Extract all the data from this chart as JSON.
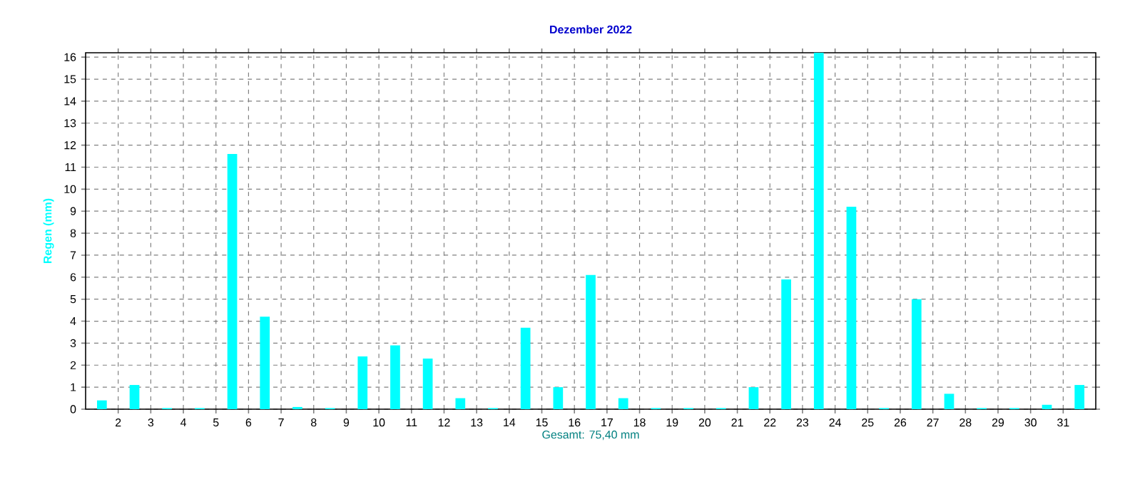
{
  "chart_data": {
    "type": "bar",
    "title": "Dezember 2022",
    "ylabel": "Regen  (mm)",
    "xlabel": "Gesamt: 75,40 mm",
    "x": [
      1.5,
      2.5,
      3.5,
      4.5,
      5.5,
      6.5,
      7.5,
      8.5,
      9.5,
      10.5,
      11.5,
      12.5,
      13.5,
      14.5,
      15.5,
      16.5,
      17.5,
      18.5,
      19.5,
      20.5,
      21.5,
      22.5,
      23.5,
      24.5,
      25.5,
      26.5,
      27.5,
      28.5,
      29.5,
      30.5,
      31.5
    ],
    "values": [
      0.4,
      1.1,
      0.05,
      0.05,
      11.6,
      4.2,
      0.1,
      0.05,
      2.4,
      2.9,
      2.3,
      0.5,
      0.05,
      3.7,
      1.0,
      6.1,
      0.5,
      0.05,
      0.05,
      0.05,
      1.0,
      5.9,
      16.2,
      9.2,
      0.05,
      5.0,
      0.7,
      0.05,
      0.05,
      0.2,
      1.1
    ],
    "color": "#00ffff",
    "xlim": [
      1,
      32
    ],
    "xticks": [
      2,
      3,
      4,
      5,
      6,
      7,
      8,
      9,
      10,
      11,
      12,
      13,
      14,
      15,
      16,
      17,
      18,
      19,
      20,
      21,
      22,
      23,
      24,
      25,
      26,
      27,
      28,
      29,
      30,
      31
    ],
    "ylim": [
      0,
      16.2
    ],
    "yticks": [
      0,
      1,
      2,
      3,
      4,
      5,
      6,
      7,
      8,
      9,
      10,
      11,
      12,
      13,
      14,
      15,
      16
    ],
    "grid": true
  }
}
